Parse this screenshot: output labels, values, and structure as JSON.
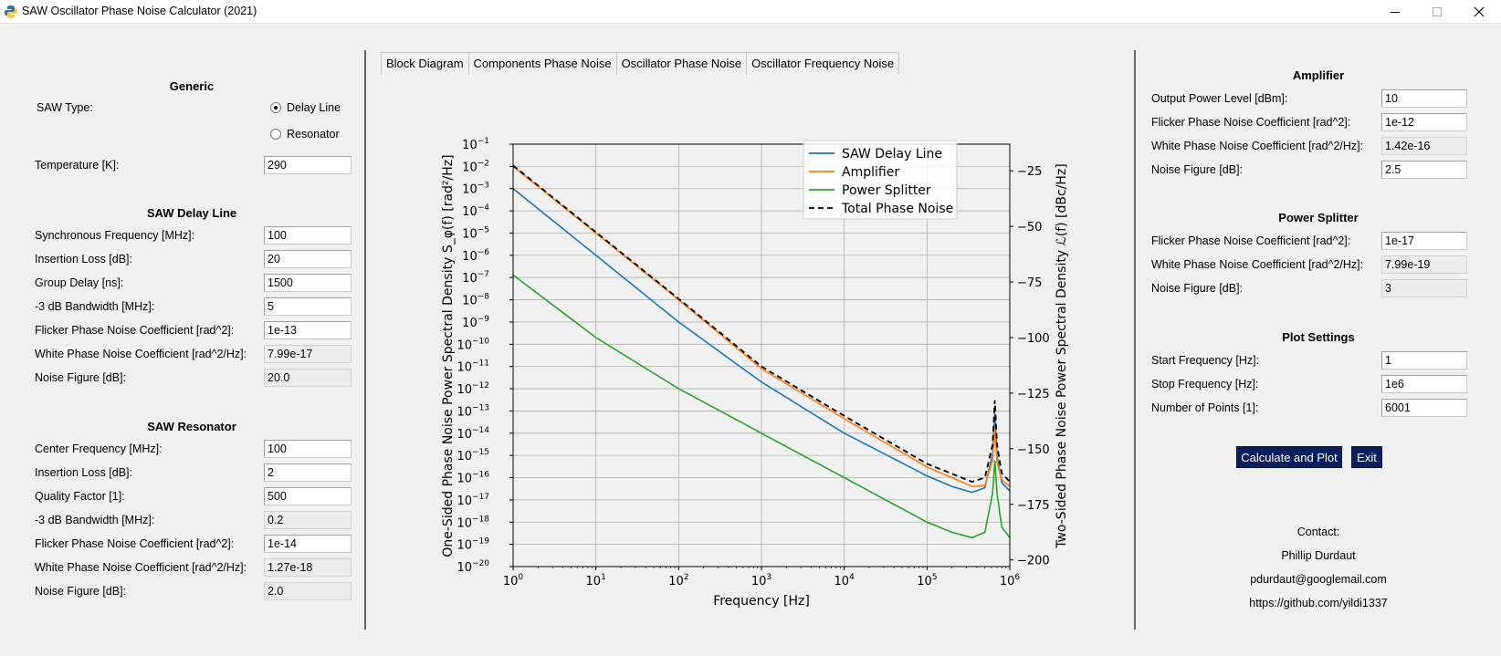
{
  "window": {
    "title": "SAW Oscillator Phase Noise Calculator (2021)"
  },
  "generic": {
    "title": "Generic",
    "saw_type_label": "SAW Type:",
    "option_delay_line": "Delay Line",
    "option_resonator": "Resonator",
    "selected": "Delay Line",
    "temperature_label": "Temperature [K]:",
    "temperature_value": "290"
  },
  "delay_line": {
    "title": "SAW Delay Line",
    "fields": [
      {
        "label": "Synchronous Frequency [MHz]:",
        "value": "100",
        "readonly": false
      },
      {
        "label": "Insertion Loss [dB]:",
        "value": "20",
        "readonly": false
      },
      {
        "label": "Group Delay [ns]:",
        "value": "1500",
        "readonly": false
      },
      {
        "label": "-3 dB Bandwidth [MHz]:",
        "value": "5",
        "readonly": false
      },
      {
        "label": "Flicker Phase Noise Coefficient [rad^2]:",
        "value": "1e-13",
        "readonly": false
      },
      {
        "label": "White Phase Noise Coefficient [rad^2/Hz]:",
        "value": "7.99e-17",
        "readonly": true
      },
      {
        "label": "Noise Figure [dB]:",
        "value": "20.0",
        "readonly": true
      }
    ]
  },
  "resonator": {
    "title": "SAW Resonator",
    "fields": [
      {
        "label": "Center Frequency [MHz]:",
        "value": "100",
        "readonly": false
      },
      {
        "label": "Insertion Loss [dB]:",
        "value": "2",
        "readonly": false
      },
      {
        "label": "Quality Factor [1]:",
        "value": "500",
        "readonly": false
      },
      {
        "label": "-3 dB Bandwidth [MHz]:",
        "value": "0.2",
        "readonly": true
      },
      {
        "label": "Flicker Phase Noise Coefficient [rad^2]:",
        "value": "1e-14",
        "readonly": false
      },
      {
        "label": "White Phase Noise Coefficient [rad^2/Hz]:",
        "value": "1.27e-18",
        "readonly": true
      },
      {
        "label": "Noise Figure [dB]:",
        "value": "2.0",
        "readonly": true
      }
    ]
  },
  "tabs": [
    "Block Diagram",
    "Components Phase Noise",
    "Oscillator Phase Noise",
    "Oscillator Frequency Noise"
  ],
  "amplifier": {
    "title": "Amplifier",
    "fields": [
      {
        "label": "Output Power Level [dBm]:",
        "value": "10",
        "readonly": false
      },
      {
        "label": "Flicker Phase Noise Coefficient [rad^2]:",
        "value": "1e-12",
        "readonly": false
      },
      {
        "label": "White Phase Noise Coefficient [rad^2/Hz]:",
        "value": "1.42e-16",
        "readonly": true
      },
      {
        "label": "Noise Figure [dB]:",
        "value": "2.5",
        "readonly": false
      }
    ]
  },
  "power_splitter": {
    "title": "Power Splitter",
    "fields": [
      {
        "label": "Flicker Phase Noise Coefficient [rad^2]:",
        "value": "1e-17",
        "readonly": false
      },
      {
        "label": "White Phase Noise Coefficient [rad^2/Hz]:",
        "value": "7.99e-19",
        "readonly": true
      },
      {
        "label": "Noise Figure [dB]:",
        "value": "3",
        "readonly": true
      }
    ]
  },
  "plot_settings": {
    "title": "Plot Settings",
    "fields": [
      {
        "label": "Start Frequency [Hz]:",
        "value": "1",
        "readonly": false
      },
      {
        "label": "Stop Frequency [Hz]:",
        "value": "1e6",
        "readonly": false
      },
      {
        "label": "Number of Points [1]:",
        "value": "6001",
        "readonly": false
      }
    ]
  },
  "buttons": {
    "calculate": "Calculate and Plot",
    "exit": "Exit"
  },
  "contact": {
    "heading": "Contact:",
    "name": "Phillip Durdaut",
    "email": "pdurdaut@googlemail.com",
    "url": "https://github.com/yildi1337"
  },
  "colors": {
    "button_bg": "#0a1f5c",
    "delay_line": "#1f77b4",
    "amplifier": "#ff7f0e",
    "power_splitter": "#2ca02c",
    "total": "#000000"
  },
  "chart_data": {
    "type": "line",
    "xscale": "log",
    "yscale": "log",
    "xlabel": "Frequency [Hz]",
    "ylabel": "One-Sided Phase Noise Power Spectral Density S_φ(f) [rad²/Hz]",
    "ylabel_right": "Two-Sided Phase Noise Power Spectral Density ℒ(f) [dBc/Hz]",
    "xlim": [
      1,
      1000000
    ],
    "ylim": [
      1e-20,
      0.1
    ],
    "ylim_right_dbc": [
      -203,
      -13
    ],
    "x_ticks": [
      "10^0",
      "10^1",
      "10^2",
      "10^3",
      "10^4",
      "10^5",
      "10^6"
    ],
    "y_ticks": [
      "10^-1",
      "10^-2",
      "10^-3",
      "10^-4",
      "10^-5",
      "10^-6",
      "10^-7",
      "10^-8",
      "10^-9",
      "10^-10",
      "10^-11",
      "10^-12",
      "10^-13",
      "10^-14",
      "10^-15",
      "10^-16",
      "10^-17",
      "10^-18",
      "10^-19",
      "10^-20"
    ],
    "y_right_ticks": [
      -25,
      -50,
      -75,
      -100,
      -125,
      -150,
      -175,
      -200
    ],
    "grid": true,
    "legend": "top-right",
    "series": [
      {
        "name": "SAW Delay Line",
        "color": "#1f77b4",
        "dashed": false,
        "x": [
          1,
          10,
          100,
          1000,
          10000,
          100000,
          200000,
          350000,
          500000,
          620000,
          660000,
          700000,
          800000,
          1000000
        ],
        "y": [
          0.001,
          1e-06,
          1e-09,
          2e-12,
          1e-14,
          1.2e-16,
          4e-17,
          2.2e-17,
          3.5e-17,
          1.2e-15,
          8e-14,
          1e-15,
          6e-17,
          2.5e-17
        ]
      },
      {
        "name": "Amplifier",
        "color": "#ff7f0e",
        "dashed": false,
        "x": [
          1,
          10,
          100,
          1000,
          10000,
          100000,
          200000,
          350000,
          500000,
          620000,
          660000,
          700000,
          800000,
          1000000
        ],
        "y": [
          0.01,
          1e-05,
          1e-08,
          8e-12,
          4.5e-14,
          3e-16,
          1e-16,
          4e-17,
          4.5e-17,
          6e-16,
          2e-14,
          5e-16,
          8e-17,
          4e-17
        ]
      },
      {
        "name": "Power Splitter",
        "color": "#2ca02c",
        "dashed": false,
        "x": [
          1,
          10,
          100,
          1000,
          10000,
          100000,
          200000,
          350000,
          500000,
          620000,
          660000,
          700000,
          800000,
          1000000
        ],
        "y": [
          1.3e-07,
          2e-10,
          1e-12,
          1e-14,
          1e-16,
          1e-18,
          3.5e-19,
          2e-19,
          3.5e-19,
          2e-17,
          6e-16,
          2e-17,
          6e-19,
          2e-19
        ]
      },
      {
        "name": "Total Phase Noise",
        "color": "#000000",
        "dashed": true,
        "x": [
          1,
          10,
          100,
          1000,
          10000,
          100000,
          200000,
          350000,
          500000,
          620000,
          660000,
          700000,
          800000,
          1000000
        ],
        "y": [
          0.011,
          1.1e-05,
          1.1e-08,
          1e-11,
          6e-14,
          4.2e-16,
          1.5e-16,
          6.5e-17,
          1e-16,
          3e-15,
          3e-13,
          3e-15,
          1.6e-16,
          6.5e-17
        ]
      }
    ]
  }
}
